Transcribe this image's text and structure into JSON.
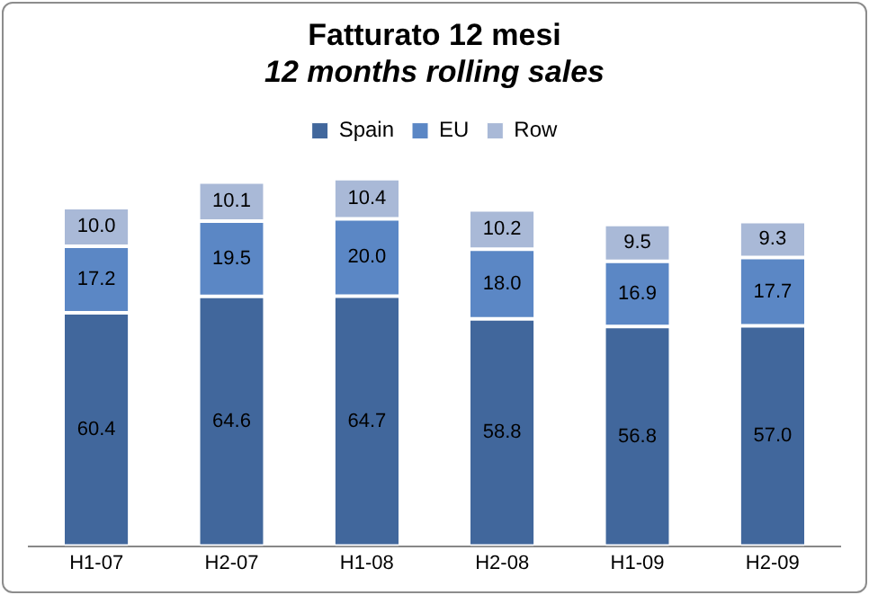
{
  "chart_data": {
    "type": "bar",
    "title": "Fatturato 12 mesi",
    "subtitle": "12 months rolling sales",
    "categories": [
      "H1-07",
      "H2-07",
      "H1-08",
      "H2-08",
      "H1-09",
      "H2-09"
    ],
    "stacked": true,
    "legend": "top",
    "grid": false,
    "tick_labels": "x",
    "series": [
      {
        "name": "Spain",
        "color": "#41679c",
        "values": [
          60.4,
          64.6,
          64.7,
          58.8,
          56.8,
          57
        ],
        "value_labels": [
          "60.4",
          "64.6",
          "64.7",
          "58.8",
          "56.8",
          "57.0"
        ]
      },
      {
        "name": "EU",
        "color": "#5b87c5",
        "values": [
          17.2,
          19.5,
          20,
          18,
          16.9,
          17.7
        ],
        "value_labels": [
          "17.2",
          "19.5",
          "20.0",
          "18.0",
          "16.9",
          "17.7"
        ]
      },
      {
        "name": "Row",
        "color": "#a9b9d7",
        "values": [
          10,
          10.1,
          10.4,
          10.2,
          9.5,
          9.3
        ],
        "value_labels": [
          "10.0",
          "10.1",
          "10.4",
          "10.2",
          "9.5",
          "9.3"
        ]
      }
    ]
  }
}
